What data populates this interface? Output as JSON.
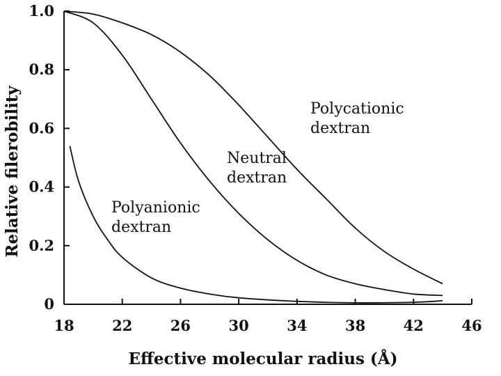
{
  "chart_data": {
    "type": "line",
    "title": "",
    "xlabel": "Effective molecular radius (Å)",
    "ylabel": "Relative filerobility",
    "xlim": [
      18,
      46
    ],
    "ylim": [
      0,
      1.0
    ],
    "x_ticks": [
      18,
      22,
      26,
      30,
      34,
      38,
      42,
      46
    ],
    "y_ticks": [
      0,
      0.2,
      0.4,
      0.6,
      0.8,
      1.0
    ],
    "x_tick_labels": [
      "18",
      "22",
      "26",
      "30",
      "34",
      "38",
      "42",
      "46"
    ],
    "y_tick_labels": [
      "0",
      "0.2",
      "0.4",
      "0.6",
      "0.8",
      "1.0"
    ],
    "grid": false,
    "legend": "none",
    "series": [
      {
        "label": [
          "Polycationic",
          "dextran"
        ],
        "x": [
          18,
          20,
          22,
          24,
          26,
          28,
          30,
          32,
          34,
          36,
          38,
          40,
          42,
          44
        ],
        "y": [
          1.0,
          0.99,
          0.96,
          0.92,
          0.86,
          0.78,
          0.68,
          0.57,
          0.46,
          0.36,
          0.26,
          0.18,
          0.12,
          0.07
        ]
      },
      {
        "label": [
          "Neutral",
          "dextran"
        ],
        "x": [
          18,
          20,
          22,
          24,
          26,
          28,
          30,
          32,
          34,
          36,
          38,
          40,
          42,
          44
        ],
        "y": [
          1.0,
          0.96,
          0.85,
          0.7,
          0.55,
          0.42,
          0.31,
          0.22,
          0.15,
          0.1,
          0.07,
          0.05,
          0.035,
          0.03
        ]
      },
      {
        "label": [
          "Polyanionic",
          "dextran"
        ],
        "x": [
          18.4,
          19,
          20,
          21,
          22,
          24,
          26,
          28,
          30,
          34,
          38,
          42,
          44
        ],
        "y": [
          0.54,
          0.42,
          0.3,
          0.22,
          0.16,
          0.09,
          0.055,
          0.035,
          0.022,
          0.01,
          0.005,
          0.007,
          0.012
        ]
      }
    ]
  }
}
